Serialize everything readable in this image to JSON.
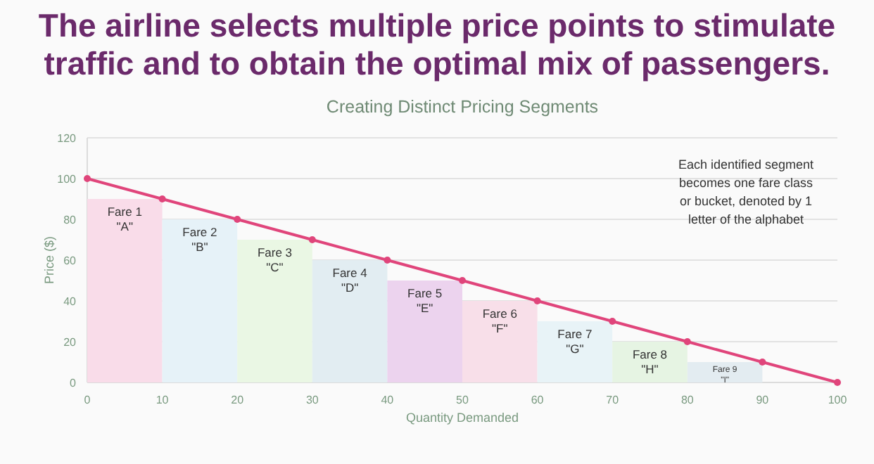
{
  "chart_data": {
    "type": "bar",
    "title": "The airline selects multiple price points to stimulate traffic and to obtain the optimal mix of passengers.",
    "subtitle": "Creating Distinct Pricing Segments",
    "xlabel": "Quantity Demanded",
    "ylabel": "Price ($)",
    "xlim": [
      0,
      100
    ],
    "xticks": [
      0,
      10,
      20,
      30,
      40,
      50,
      60,
      70,
      80,
      90,
      100
    ],
    "ylim": [
      0,
      120
    ],
    "yticks": [
      0,
      20,
      40,
      60,
      80,
      100,
      120
    ],
    "grid": "y",
    "series": [
      {
        "x": [
          5,
          15,
          25,
          35,
          45,
          55,
          65,
          75,
          85
        ],
        "values": [
          90,
          80,
          70,
          60,
          50,
          40,
          30,
          20,
          10
        ],
        "colors": [
          "#f9dce9",
          "#e6f2f8",
          "#eaf7e4",
          "#e2edf2",
          "#ecd3ee",
          "#f8dfe9",
          "#e8f3f7",
          "#e6f4e3",
          "#e3ecf1"
        ]
      },
      {
        "type": "line",
        "color": "#e0457b",
        "marker": "circle",
        "line_style": "solid",
        "x": [
          0,
          10,
          20,
          30,
          40,
          50,
          60,
          70,
          80,
          90,
          100
        ],
        "values": [
          100,
          90,
          80,
          70,
          60,
          50,
          40,
          30,
          20,
          10,
          0
        ]
      }
    ],
    "annotations": [
      "Each identified segment\nbecomes one fare class\nor bucket, denoted by 1\nletter of the alphabet",
      {
        "text": "Fare 1\n\"A\"",
        "x": 5,
        "y": 90
      },
      {
        "text": "Fare 2\n\"B\"",
        "x": 15,
        "y": 80
      },
      {
        "text": "Fare 3\n\"C\"",
        "x": 25,
        "y": 70
      },
      {
        "text": "Fare 4\n\"D\"",
        "x": 35,
        "y": 60
      },
      {
        "text": "Fare 5\n\"E\"",
        "x": 45,
        "y": 50
      },
      {
        "text": "Fare 6\n\"F\"",
        "x": 55,
        "y": 40
      },
      {
        "text": "Fare 7\n\"G\"",
        "x": 65,
        "y": 30
      },
      {
        "text": "Fare 8\n\"H\"",
        "x": 75,
        "y": 20
      },
      {
        "text": "Fare 9\n\"I\"",
        "x": 85,
        "y": 10
      }
    ]
  }
}
